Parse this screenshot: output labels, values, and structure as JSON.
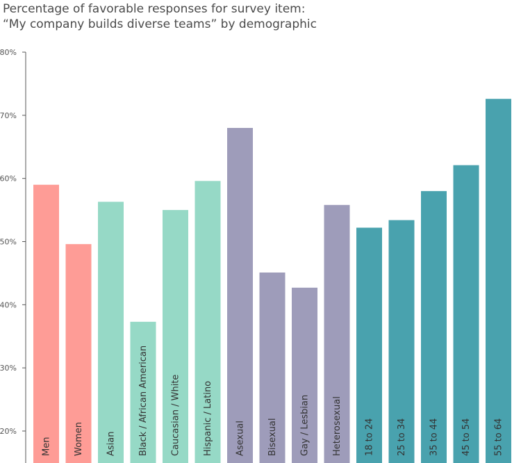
{
  "chart_data": {
    "type": "bar",
    "title_line1": "Percentage of favorable responses for survey item:",
    "title_line2": "“My company builds diverse teams” by demographic",
    "ylim": [
      15,
      80
    ],
    "yticks": [
      20,
      30,
      40,
      50,
      60,
      70,
      80
    ],
    "ytick_labels": [
      "20%",
      "30%",
      "40%",
      "50%",
      "60%",
      "70%",
      "80%"
    ],
    "grid": false,
    "categories": [
      "Men",
      "Women",
      "Asian",
      "Black / African American",
      "Caucasian / White",
      "Hispanic / Latino",
      "Asexual",
      "Bisexual",
      "Gay / Lesbian",
      "Heterosexual",
      "18 to 24",
      "25 to 34",
      "35 to 44",
      "45 to 54",
      "55 to 64"
    ],
    "values": [
      59.0,
      49.6,
      56.3,
      37.3,
      55.0,
      59.6,
      68.0,
      45.1,
      42.7,
      55.8,
      52.2,
      53.4,
      58.0,
      62.1,
      72.6
    ],
    "groups": [
      0,
      0,
      1,
      1,
      1,
      1,
      2,
      2,
      2,
      2,
      3,
      3,
      3,
      3,
      3
    ],
    "group_colors": [
      "#fe9c96",
      "#96d9c6",
      "#9e9cba",
      "#49a2ae"
    ]
  }
}
